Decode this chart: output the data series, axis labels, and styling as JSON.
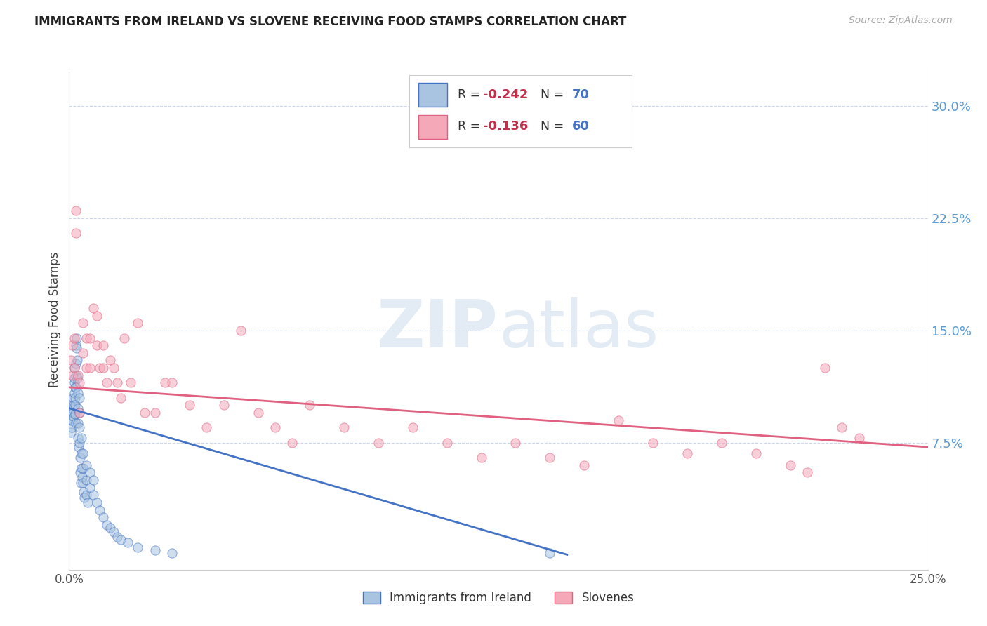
{
  "title": "IMMIGRANTS FROM IRELAND VS SLOVENE RECEIVING FOOD STAMPS CORRELATION CHART",
  "source": "Source: ZipAtlas.com",
  "ylabel": "Receiving Food Stamps",
  "ytick_labels": [
    "7.5%",
    "15.0%",
    "22.5%",
    "30.0%"
  ],
  "ytick_values": [
    0.075,
    0.15,
    0.225,
    0.3
  ],
  "xlim": [
    0.0,
    0.25
  ],
  "ylim": [
    -0.01,
    0.325
  ],
  "color_ireland": "#a8c4e0",
  "color_slovene": "#f4a8b8",
  "color_line_ireland": "#4472c4",
  "color_line_slovene": "#e06080",
  "color_axis_right": "#5b9bd5",
  "background_color": "#ffffff",
  "grid_color": "#d0d8e8",
  "marker_size": 90,
  "marker_alpha": 0.55,
  "line_width": 2.0,
  "ireland_x": [
    0.0002,
    0.0004,
    0.0006,
    0.0006,
    0.0008,
    0.001,
    0.001,
    0.0012,
    0.0012,
    0.0014,
    0.0014,
    0.0015,
    0.0015,
    0.0016,
    0.0016,
    0.0017,
    0.0017,
    0.0018,
    0.0018,
    0.0019,
    0.002,
    0.002,
    0.002,
    0.002,
    0.0022,
    0.0022,
    0.0024,
    0.0024,
    0.0025,
    0.0025,
    0.0026,
    0.0026,
    0.0028,
    0.003,
    0.003,
    0.003,
    0.003,
    0.0032,
    0.0032,
    0.0034,
    0.0035,
    0.0035,
    0.0036,
    0.0038,
    0.004,
    0.004,
    0.004,
    0.0042,
    0.0045,
    0.005,
    0.005,
    0.005,
    0.0055,
    0.006,
    0.006,
    0.007,
    0.007,
    0.008,
    0.009,
    0.01,
    0.011,
    0.012,
    0.013,
    0.014,
    0.015,
    0.017,
    0.02,
    0.025,
    0.03,
    0.14
  ],
  "ireland_y": [
    0.1,
    0.095,
    0.09,
    0.082,
    0.085,
    0.098,
    0.09,
    0.105,
    0.095,
    0.1,
    0.092,
    0.115,
    0.108,
    0.125,
    0.118,
    0.112,
    0.105,
    0.1,
    0.094,
    0.088,
    0.14,
    0.128,
    0.12,
    0.112,
    0.145,
    0.138,
    0.13,
    0.118,
    0.108,
    0.098,
    0.088,
    0.078,
    0.072,
    0.105,
    0.095,
    0.085,
    0.075,
    0.065,
    0.055,
    0.048,
    0.078,
    0.068,
    0.058,
    0.052,
    0.068,
    0.058,
    0.048,
    0.042,
    0.038,
    0.06,
    0.05,
    0.04,
    0.035,
    0.055,
    0.045,
    0.05,
    0.04,
    0.035,
    0.03,
    0.025,
    0.02,
    0.018,
    0.015,
    0.012,
    0.01,
    0.008,
    0.005,
    0.003,
    0.001,
    0.001
  ],
  "slovene_x": [
    0.0005,
    0.001,
    0.001,
    0.0015,
    0.0015,
    0.002,
    0.002,
    0.0025,
    0.003,
    0.003,
    0.004,
    0.004,
    0.005,
    0.005,
    0.006,
    0.006,
    0.007,
    0.008,
    0.008,
    0.009,
    0.01,
    0.01,
    0.011,
    0.012,
    0.013,
    0.014,
    0.015,
    0.016,
    0.018,
    0.02,
    0.022,
    0.025,
    0.028,
    0.03,
    0.035,
    0.04,
    0.045,
    0.05,
    0.055,
    0.06,
    0.065,
    0.07,
    0.08,
    0.09,
    0.1,
    0.11,
    0.12,
    0.13,
    0.14,
    0.15,
    0.16,
    0.17,
    0.18,
    0.19,
    0.2,
    0.21,
    0.215,
    0.22,
    0.225,
    0.23
  ],
  "slovene_y": [
    0.13,
    0.14,
    0.12,
    0.145,
    0.125,
    0.23,
    0.215,
    0.12,
    0.115,
    0.095,
    0.155,
    0.135,
    0.145,
    0.125,
    0.145,
    0.125,
    0.165,
    0.16,
    0.14,
    0.125,
    0.14,
    0.125,
    0.115,
    0.13,
    0.125,
    0.115,
    0.105,
    0.145,
    0.115,
    0.155,
    0.095,
    0.095,
    0.115,
    0.115,
    0.1,
    0.085,
    0.1,
    0.15,
    0.095,
    0.085,
    0.075,
    0.1,
    0.085,
    0.075,
    0.085,
    0.075,
    0.065,
    0.075,
    0.065,
    0.06,
    0.09,
    0.075,
    0.068,
    0.075,
    0.068,
    0.06,
    0.055,
    0.125,
    0.085,
    0.078
  ]
}
